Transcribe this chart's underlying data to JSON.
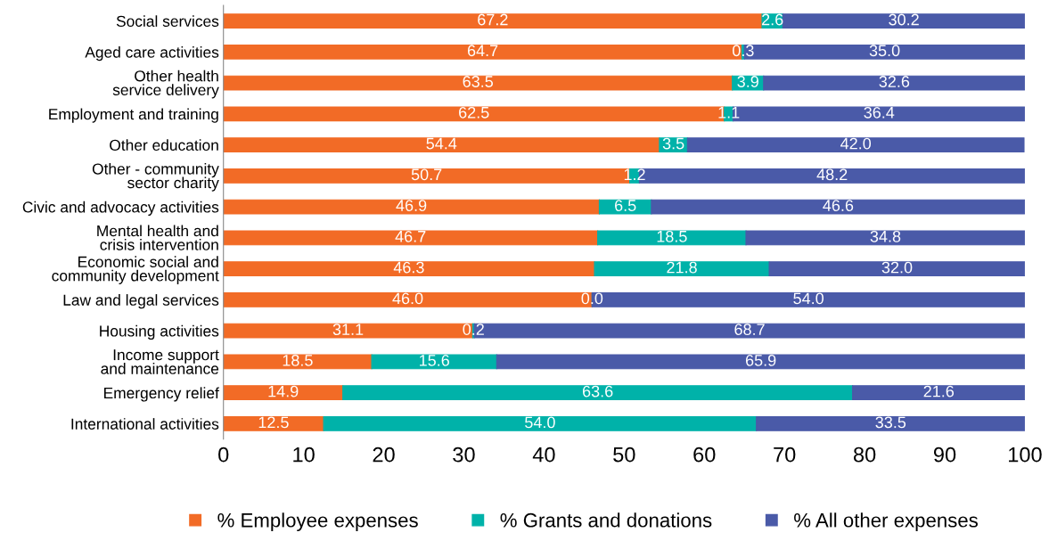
{
  "chart_data": {
    "type": "bar",
    "orientation": "horizontal",
    "stacked": true,
    "categories": [
      "Social services",
      "Aged care activities",
      "Other health\nservice delivery",
      "Employment and training",
      "Other education",
      "Other - community\nsector charity",
      "Civic and advocacy activities",
      "Mental health and\ncrisis intervention",
      "Economic social and\ncommunity development",
      "Law and legal services",
      "Housing activities",
      "Income support\nand maintenance",
      "Emergency relief",
      "International activities"
    ],
    "series": [
      {
        "name": "% Employee expenses",
        "color": "#f26b26",
        "values": [
          67.2,
          64.7,
          63.5,
          62.5,
          54.4,
          50.7,
          46.9,
          46.7,
          46.3,
          46.0,
          31.1,
          18.5,
          14.9,
          12.5
        ],
        "value_labels": [
          "67.2",
          "64.7",
          "63.5",
          "62.5",
          "54.4",
          "50.7",
          "46.9",
          "46.7",
          "46.3",
          "46.0",
          "31.1",
          "18.5",
          "14.9",
          "12.5"
        ]
      },
      {
        "name": "% Grants and donations",
        "color": "#00b2a9",
        "values": [
          2.6,
          0.3,
          3.9,
          1.1,
          3.5,
          1.2,
          6.5,
          18.5,
          21.8,
          0.0,
          0.2,
          15.6,
          63.6,
          54.0
        ],
        "value_labels": [
          "2.6",
          "0.3",
          "3.9",
          "1.1",
          "3.5",
          "1.2",
          "6.5",
          "18.5",
          "21.8",
          "0.0",
          "0.2",
          "15.6",
          "63.6",
          "54.0"
        ]
      },
      {
        "name": "% All other expenses",
        "color": "#4a5aa8",
        "values": [
          30.2,
          35.0,
          32.6,
          36.4,
          42.0,
          48.2,
          46.6,
          34.8,
          32.0,
          54.0,
          68.7,
          65.9,
          21.6,
          33.5
        ],
        "value_labels": [
          "30.2",
          "35.0",
          "32.6",
          "36.4",
          "42.0",
          "48.2",
          "46.6",
          "34.8",
          "32.0",
          "54.0",
          "68.7",
          "65.9",
          "21.6",
          "33.5"
        ]
      }
    ],
    "xlim": [
      0,
      100
    ],
    "xticks": [
      0,
      10,
      20,
      30,
      40,
      50,
      60,
      70,
      80,
      90,
      100
    ],
    "legend": "bottom",
    "grid": false,
    "marker": "square"
  }
}
